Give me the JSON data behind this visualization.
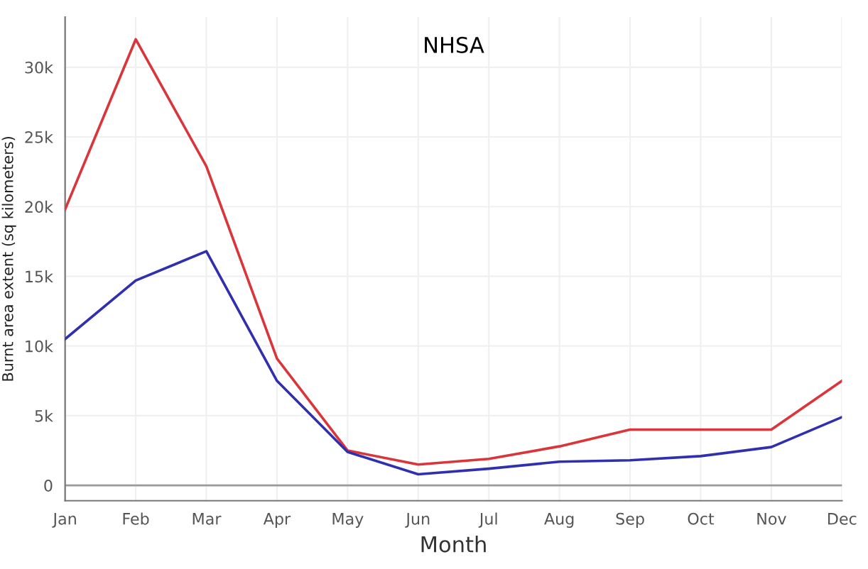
{
  "chart_data": {
    "type": "line",
    "title": "NHSA",
    "xlabel": "Month",
    "ylabel": "Burnt area extent (sq kilometers)",
    "categories": [
      "Jan",
      "Feb",
      "Mar",
      "Apr",
      "May",
      "Jun",
      "Jul",
      "Aug",
      "Sep",
      "Oct",
      "Nov",
      "Dec"
    ],
    "series": [
      {
        "color": "#d9353a",
        "values": [
          19800,
          32000,
          22900,
          9100,
          2500,
          1500,
          1900,
          2800,
          4000,
          4000,
          4000,
          7500
        ]
      },
      {
        "color": "#2f2fb0",
        "values": [
          10500,
          14700,
          16800,
          7500,
          2400,
          800,
          1200,
          1700,
          1800,
          2100,
          2750,
          4900
        ]
      }
    ],
    "ylim": [
      -1100,
      33600
    ],
    "yticks": [
      0,
      {
        "value": 5000,
        "label": "5k"
      },
      {
        "value": 10000,
        "label": "10k"
      },
      {
        "value": 15000,
        "label": "15k"
      },
      {
        "value": 20000,
        "label": "20k"
      },
      {
        "value": 25000,
        "label": "25k"
      },
      {
        "value": 30000,
        "label": "30k"
      }
    ],
    "ref_lines": [
      {
        "axis": "y",
        "value": 0,
        "color": "#9a9a9a"
      }
    ],
    "grid": true,
    "marker": "none",
    "line_style": "solid"
  }
}
